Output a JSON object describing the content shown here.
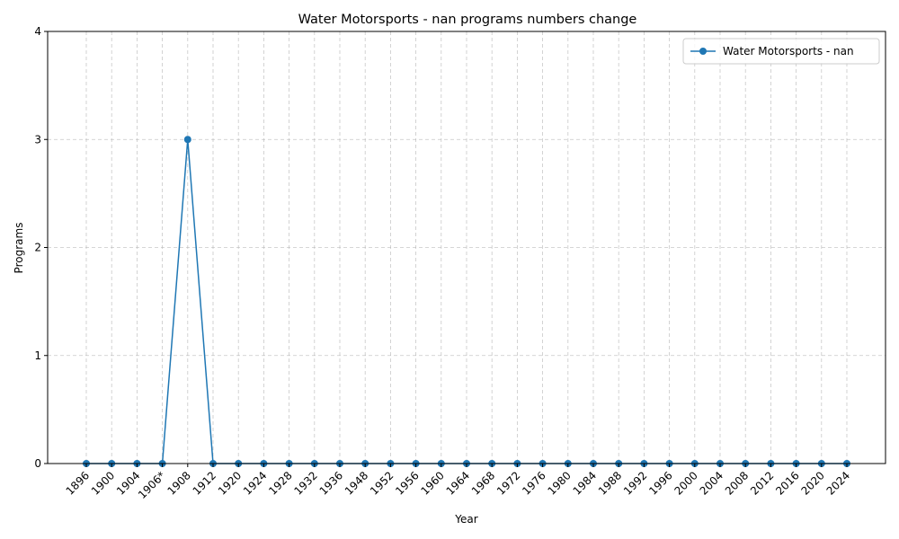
{
  "chart_data": {
    "type": "line",
    "title": "Water Motorsports - nan programs numbers change",
    "xlabel": "Year",
    "ylabel": "Programs",
    "categories": [
      "1896",
      "1900",
      "1904",
      "1906*",
      "1908",
      "1912",
      "1920",
      "1924",
      "1928",
      "1932",
      "1936",
      "1948",
      "1952",
      "1956",
      "1960",
      "1964",
      "1968",
      "1972",
      "1976",
      "1980",
      "1984",
      "1988",
      "1992",
      "1996",
      "2000",
      "2004",
      "2008",
      "2012",
      "2016",
      "2020",
      "2024"
    ],
    "series": [
      {
        "name": "Water Motorsports - nan",
        "color": "#1f77b4",
        "marker": "circle",
        "values": [
          0,
          0,
          0,
          0,
          3,
          0,
          0,
          0,
          0,
          0,
          0,
          0,
          0,
          0,
          0,
          0,
          0,
          0,
          0,
          0,
          0,
          0,
          0,
          0,
          0,
          0,
          0,
          0,
          0,
          0,
          0
        ]
      }
    ],
    "ylim": [
      0,
      4
    ],
    "yticks": [
      0,
      1,
      2,
      3,
      4
    ],
    "grid": true,
    "grid_style": "dashed",
    "legend_position": "top-right"
  }
}
